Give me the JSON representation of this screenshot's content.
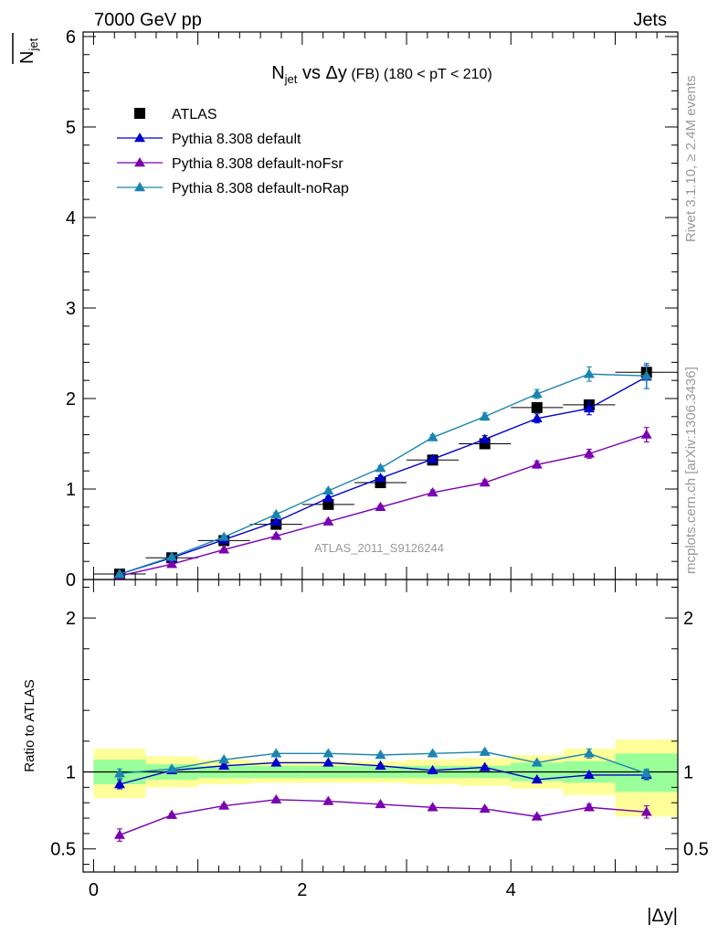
{
  "header": {
    "left": "7000 GeV pp",
    "right": "Jets"
  },
  "side_labels": {
    "rivet": "Rivet 3.1.10, ≥ 2.4M events",
    "mcplots": "mcplots.cern.ch [arXiv:1306.3436]"
  },
  "watermark": "ATLAS_2011_S9126244",
  "chart_data": [
    {
      "type": "line",
      "panel": "main",
      "title": "N_jet vs Δy (FB) (180 < pT < 210)",
      "title_parts": {
        "main": "N",
        "sub": "jet",
        "rest": " vs Δy",
        "small": " (FB) (180 < pT < 210)"
      },
      "ylabel": "N_jet (mean)",
      "ylabel_parts": {
        "main": "N",
        "sub": "jet"
      },
      "xlabel": "|Δy|",
      "xlim": [
        -0.1,
        5.6
      ],
      "ylim": [
        0,
        6.05
      ],
      "y_ticks": [
        0,
        1,
        2,
        3,
        4,
        5,
        6
      ],
      "x_ticks": [
        0,
        2,
        4
      ],
      "grid": false,
      "legend_position": "top-left",
      "x": [
        0.25,
        0.75,
        1.25,
        1.75,
        2.25,
        2.75,
        3.25,
        3.75,
        4.25,
        4.75,
        5.3
      ],
      "series": [
        {
          "name": "ATLAS",
          "marker": "square",
          "color": "#000000",
          "values": [
            0.06,
            0.24,
            0.43,
            0.61,
            0.83,
            1.07,
            1.32,
            1.5,
            1.9,
            1.93,
            2.29
          ],
          "xerr": [
            0.25,
            0.25,
            0.25,
            0.25,
            0.25,
            0.25,
            0.25,
            0.25,
            0.25,
            0.25,
            0.3
          ]
        },
        {
          "name": "Pythia 8.308 default",
          "marker": "triangle",
          "color": "#0000cc",
          "values": [
            0.06,
            0.24,
            0.44,
            0.64,
            0.9,
            1.12,
            1.33,
            1.55,
            1.78,
            1.89,
            2.24
          ],
          "yerr": [
            0.01,
            0.01,
            0.01,
            0.02,
            0.02,
            0.03,
            0.03,
            0.04,
            0.05,
            0.07,
            0.13
          ]
        },
        {
          "name": "Pythia 8.308 default-noFsr",
          "marker": "triangle",
          "color": "#7a00b0",
          "values": [
            0.04,
            0.17,
            0.33,
            0.48,
            0.64,
            0.8,
            0.96,
            1.07,
            1.27,
            1.39,
            1.6
          ],
          "yerr": [
            0.01,
            0.01,
            0.01,
            0.02,
            0.02,
            0.02,
            0.03,
            0.03,
            0.04,
            0.05,
            0.08
          ]
        },
        {
          "name": "Pythia 8.308 default-noRap",
          "marker": "triangle",
          "color": "#1a85b0",
          "values": [
            0.06,
            0.25,
            0.47,
            0.72,
            0.98,
            1.23,
            1.57,
            1.8,
            2.05,
            2.27,
            2.25
          ],
          "yerr": [
            0.01,
            0.01,
            0.01,
            0.02,
            0.02,
            0.03,
            0.03,
            0.04,
            0.05,
            0.08,
            0.14
          ]
        }
      ]
    },
    {
      "type": "line",
      "panel": "ratio",
      "ylabel": "Ratio to ATLAS",
      "xlabel": "|Δy|",
      "xlim": [
        -0.1,
        5.6
      ],
      "ylim": [
        0.35,
        2.25
      ],
      "y_ticks": [
        0.5,
        1,
        2
      ],
      "x_ticks": [
        0,
        2,
        4
      ],
      "reference_line": 1,
      "grid": false,
      "x": [
        0.25,
        0.75,
        1.25,
        1.75,
        2.25,
        2.75,
        3.25,
        3.75,
        4.25,
        4.75,
        5.3
      ],
      "bins": [
        [
          0,
          0.5
        ],
        [
          0.5,
          1
        ],
        [
          1,
          1.5
        ],
        [
          1.5,
          2
        ],
        [
          2,
          2.5
        ],
        [
          2.5,
          3
        ],
        [
          3,
          3.5
        ],
        [
          3.5,
          4
        ],
        [
          4,
          4.5
        ],
        [
          4.5,
          5
        ],
        [
          5,
          5.6
        ]
      ],
      "bands": {
        "total_yellow": [
          [
            0.83,
            1.15
          ],
          [
            0.9,
            1.1
          ],
          [
            0.92,
            1.08
          ],
          [
            0.93,
            1.07
          ],
          [
            0.93,
            1.07
          ],
          [
            0.93,
            1.07
          ],
          [
            0.92,
            1.08
          ],
          [
            0.91,
            1.09
          ],
          [
            0.89,
            1.11
          ],
          [
            0.85,
            1.15
          ],
          [
            0.71,
            1.21
          ]
        ],
        "stat_green": [
          [
            0.92,
            1.08
          ],
          [
            0.95,
            1.05
          ],
          [
            0.96,
            1.04
          ],
          [
            0.96,
            1.04
          ],
          [
            0.96,
            1.04
          ],
          [
            0.96,
            1.04
          ],
          [
            0.96,
            1.04
          ],
          [
            0.96,
            1.04
          ],
          [
            0.94,
            1.06
          ],
          [
            0.93,
            1.07
          ],
          [
            0.87,
            1.12
          ]
        ]
      },
      "series": [
        {
          "name": "Pythia 8.308 default",
          "color": "#0000cc",
          "values": [
            0.92,
            1.01,
            1.04,
            1.06,
            1.06,
            1.04,
            1.01,
            1.03,
            0.95,
            0.98,
            0.98
          ],
          "yerr": [
            0.03,
            0.01,
            0.01,
            0.01,
            0.01,
            0.01,
            0.01,
            0.01,
            0.01,
            0.02,
            0.03
          ]
        },
        {
          "name": "Pythia 8.308 default-noFsr",
          "color": "#7a00b0",
          "values": [
            0.59,
            0.72,
            0.78,
            0.82,
            0.81,
            0.79,
            0.77,
            0.76,
            0.71,
            0.77,
            0.74
          ],
          "yerr": [
            0.04,
            0.01,
            0.01,
            0.01,
            0.01,
            0.01,
            0.01,
            0.01,
            0.01,
            0.02,
            0.04
          ]
        },
        {
          "name": "Pythia 8.308 default-noRap",
          "color": "#1a85b0",
          "values": [
            0.99,
            1.02,
            1.08,
            1.12,
            1.12,
            1.11,
            1.12,
            1.13,
            1.06,
            1.12,
            0.99
          ],
          "yerr": [
            0.03,
            0.01,
            0.01,
            0.01,
            0.01,
            0.01,
            0.01,
            0.01,
            0.01,
            0.03,
            0.03
          ]
        }
      ]
    }
  ]
}
